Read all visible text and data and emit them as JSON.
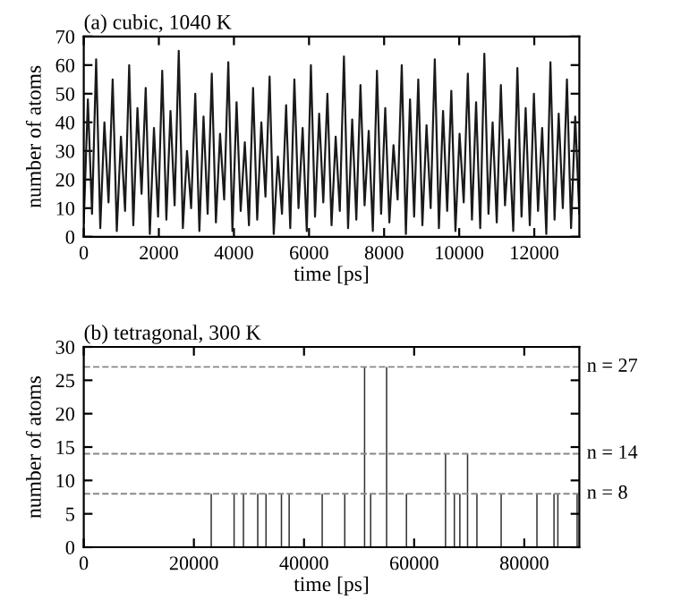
{
  "chart_data": [
    {
      "type": "line",
      "title": "(a) cubic, 1040 K",
      "xlabel": "time [ps]",
      "ylabel": "number of atoms",
      "xlim": [
        0,
        13200
      ],
      "ylim": [
        0,
        70
      ],
      "xticks": [
        0,
        2000,
        4000,
        6000,
        8000,
        10000,
        12000
      ],
      "yticks": [
        0,
        10,
        20,
        30,
        40,
        50,
        60,
        70
      ],
      "grid": false,
      "marker": "none",
      "line_style": "solid",
      "series": [
        {
          "color": "#1a1a1a",
          "x": [
            0,
            110,
            220,
            330,
            440,
            550,
            660,
            770,
            880,
            990,
            1100,
            1210,
            1320,
            1430,
            1540,
            1650,
            1760,
            1870,
            1980,
            2090,
            2200,
            2310,
            2420,
            2530,
            2640,
            2750,
            2860,
            2970,
            3080,
            3190,
            3300,
            3410,
            3520,
            3630,
            3740,
            3850,
            3960,
            4070,
            4180,
            4290,
            4400,
            4510,
            4620,
            4730,
            4840,
            4950,
            5060,
            5170,
            5280,
            5390,
            5500,
            5610,
            5720,
            5830,
            5940,
            6050,
            6160,
            6270,
            6380,
            6490,
            6600,
            6710,
            6820,
            6930,
            7040,
            7150,
            7260,
            7370,
            7480,
            7590,
            7700,
            7810,
            7920,
            8030,
            8140,
            8250,
            8360,
            8470,
            8580,
            8690,
            8800,
            8910,
            9020,
            9130,
            9240,
            9350,
            9460,
            9570,
            9680,
            9790,
            9900,
            10010,
            10120,
            10230,
            10340,
            10450,
            10560,
            10670,
            10780,
            10890,
            11000,
            11110,
            11220,
            11330,
            11440,
            11550,
            11660,
            11770,
            11880,
            11990,
            12100,
            12210,
            12320,
            12430,
            12540,
            12650,
            12760,
            12870,
            12980,
            13090,
            13200
          ],
          "values": [
            5,
            48,
            8,
            62,
            3,
            40,
            12,
            55,
            2,
            35,
            9,
            60,
            4,
            45,
            15,
            52,
            1,
            38,
            7,
            58,
            6,
            44,
            11,
            65,
            3,
            30,
            10,
            50,
            2,
            42,
            8,
            57,
            5,
            36,
            13,
            61,
            2,
            47,
            9,
            33,
            4,
            52,
            6,
            40,
            14,
            56,
            1,
            28,
            8,
            46,
            3,
            55,
            10,
            38,
            2,
            60,
            7,
            43,
            12,
            50,
            4,
            35,
            9,
            63,
            3,
            41,
            6,
            53,
            11,
            37,
            2,
            58,
            8,
            45,
            5,
            32,
            13,
            60,
            1,
            48,
            7,
            55,
            4,
            39,
            10,
            62,
            3,
            44,
            9,
            51,
            2,
            36,
            12,
            57,
            6,
            47,
            3,
            64,
            8,
            40,
            5,
            53,
            11,
            34,
            2,
            59,
            7,
            45,
            4,
            50,
            9,
            38,
            1,
            61,
            6,
            43,
            10,
            55,
            3,
            42,
            8
          ]
        }
      ]
    },
    {
      "type": "bar",
      "title": "(b) tetragonal, 300 K",
      "xlabel": "time [ps]",
      "ylabel": "number of atoms",
      "xlim": [
        0,
        90000
      ],
      "ylim": [
        0,
        30
      ],
      "xticks": [
        0,
        20000,
        40000,
        60000,
        80000
      ],
      "yticks": [
        0,
        5,
        10,
        15,
        20,
        25,
        30
      ],
      "grid": false,
      "series": [
        {
          "color": "#333333",
          "x": [
            23150,
            27300,
            29000,
            31600,
            33100,
            35900,
            37300,
            43300,
            47400,
            51000,
            52100,
            55000,
            58600,
            65700,
            67300,
            68300,
            69700,
            71400,
            75800,
            82300,
            85400,
            86100,
            89600
          ],
          "values": [
            8,
            8,
            8,
            8,
            8,
            8,
            8,
            8,
            8,
            27,
            8,
            27,
            8,
            14,
            8,
            8,
            14,
            8,
            8,
            8,
            8,
            8,
            8
          ]
        }
      ],
      "ref_lines": [
        {
          "axis": "y",
          "value": 27,
          "label": "n = 27",
          "color": "#888888",
          "line_style": "dashed"
        },
        {
          "axis": "y",
          "value": 14,
          "label": "n = 14",
          "color": "#888888",
          "line_style": "dashed"
        },
        {
          "axis": "y",
          "value": 8,
          "label": "n = 8",
          "color": "#888888",
          "line_style": "dashed"
        }
      ]
    }
  ]
}
